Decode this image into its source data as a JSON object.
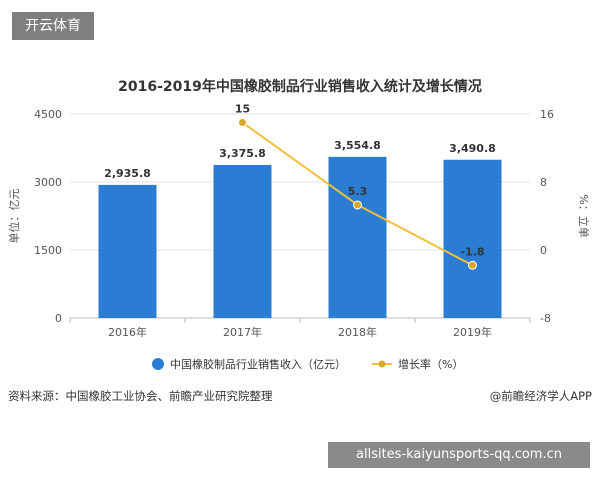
{
  "badge": "开云体育",
  "footer": {
    "source": "资料来源：中国橡胶工业协会、前瞻产业研究院整理",
    "brand": "@前瞻经济学人APP"
  },
  "banner": "allsites-kaiyunsports-qq.com.cn",
  "colors": {
    "bar": "#2b7cd3",
    "line": "#f0c03c",
    "point": "#d9a82a",
    "grid": "#e3e3e3",
    "axis_text": "#555555"
  },
  "chart_data": {
    "type": "bar",
    "title": "2016-2019年中国橡胶制品行业销售收入统计及增长情况",
    "categories": [
      "2016年",
      "2017年",
      "2018年",
      "2019年"
    ],
    "y_left": {
      "label": "单位：亿元",
      "range": [
        0,
        4500
      ],
      "ticks": [
        "0",
        "1500",
        "3000",
        "4500"
      ]
    },
    "y_right": {
      "label": "%：立单",
      "range": [
        -8,
        16
      ],
      "ticks": [
        "-8",
        "0",
        "8",
        "16"
      ]
    },
    "series": [
      {
        "name": "中国橡胶制品行业销售收入（亿元）",
        "type": "bar",
        "axis": "left",
        "values": [
          2935.8,
          3375.8,
          3554.8,
          3490.8
        ],
        "labels": [
          "2,935.8",
          "3,375.8",
          "3,554.8",
          "3,490.8"
        ]
      },
      {
        "name": "增长率（%）",
        "type": "line",
        "axis": "right",
        "values": [
          null,
          15,
          5.3,
          -1.8
        ],
        "labels": [
          "",
          "15",
          "5.3",
          "-1.8"
        ]
      }
    ],
    "grid": true,
    "legend": "bottom"
  }
}
